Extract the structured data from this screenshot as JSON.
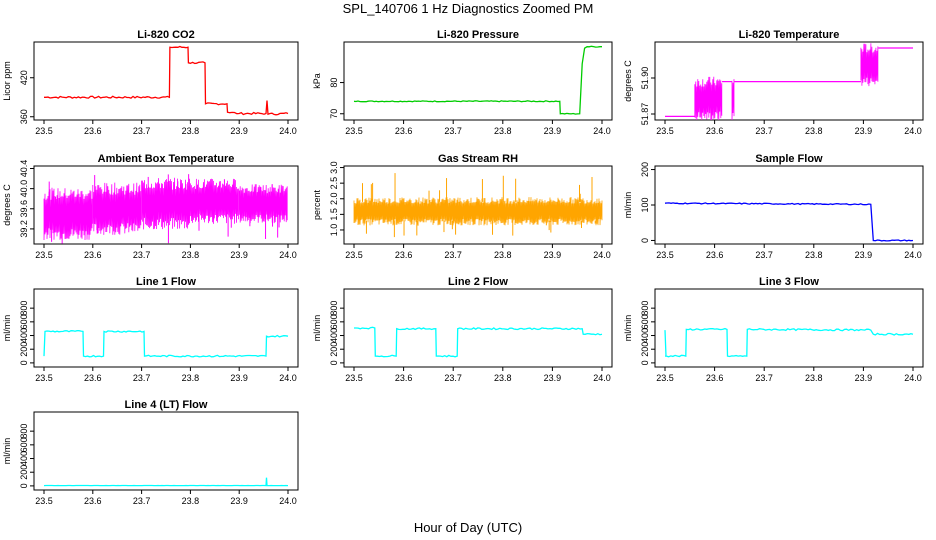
{
  "page": {
    "title": "SPL_140706  1 Hz Diagnostics Zoomed PM",
    "xlabel": "Hour of Day (UTC)"
  },
  "chart_data": [
    {
      "id": "co2",
      "type": "line",
      "title": "Li-820 CO2",
      "ylabel": "Licor ppm",
      "color": "#ff0000",
      "xlim": [
        23.5,
        24.0
      ],
      "ylim": [
        355,
        475
      ],
      "xticks": [
        23.5,
        23.6,
        23.7,
        23.8,
        23.9,
        24.0
      ],
      "xtick_labels": [
        "23.5",
        "23.6",
        "23.7",
        "23.8",
        "23.9",
        "24.0"
      ],
      "yticks": [
        360,
        420
      ],
      "ytick_labels": [
        "360",
        "420"
      ],
      "x": [
        23.5,
        23.757,
        23.758,
        23.795,
        23.796,
        23.83,
        23.831,
        23.875,
        23.876,
        23.9,
        23.955,
        23.957,
        23.959,
        24.0
      ],
      "y": [
        390,
        390,
        467,
        467,
        443,
        443,
        380,
        380,
        367,
        365,
        365,
        385,
        364,
        365
      ],
      "noise": 1.5
    },
    {
      "id": "pressure",
      "type": "line",
      "title": "Li-820 Pressure",
      "ylabel": "kPa",
      "color": "#00cc00",
      "xlim": [
        23.5,
        24.0
      ],
      "ylim": [
        68,
        93
      ],
      "xticks": [
        23.5,
        23.6,
        23.7,
        23.8,
        23.9,
        24.0
      ],
      "xtick_labels": [
        "23.5",
        "23.6",
        "23.7",
        "23.8",
        "23.9",
        "24.0"
      ],
      "yticks": [
        70,
        80
      ],
      "ytick_labels": [
        "70",
        "80"
      ],
      "x": [
        23.5,
        23.915,
        23.916,
        23.955,
        23.96,
        23.965,
        23.97,
        24.0
      ],
      "y": [
        74,
        74,
        70,
        70,
        86,
        91,
        91.5,
        91.5
      ],
      "noise": 0.15
    },
    {
      "id": "temperature",
      "type": "band",
      "title": "Li-820 Temperature",
      "ylabel": "degrees C",
      "color": "#ff00ff",
      "xlim": [
        23.5,
        24.0
      ],
      "ylim": [
        51.865,
        51.93
      ],
      "xticks": [
        23.5,
        23.6,
        23.7,
        23.8,
        23.9,
        24.0
      ],
      "xtick_labels": [
        "23.5",
        "23.6",
        "23.7",
        "23.8",
        "23.9",
        "24.0"
      ],
      "yticks": [
        51.87,
        51.9
      ],
      "ytick_labels": [
        "51.87",
        "51.90"
      ],
      "segments": [
        {
          "x0": 23.5,
          "x1": 23.56,
          "lo": 51.868,
          "hi": 51.868
        },
        {
          "x0": 23.56,
          "x1": 23.615,
          "lo": 51.868,
          "hi": 51.897
        },
        {
          "x0": 23.615,
          "x1": 23.635,
          "lo": 51.897,
          "hi": 51.897
        },
        {
          "x0": 23.635,
          "x1": 23.64,
          "lo": 51.868,
          "hi": 51.897
        },
        {
          "x0": 23.64,
          "x1": 23.895,
          "lo": 51.897,
          "hi": 51.897
        },
        {
          "x0": 23.895,
          "x1": 23.93,
          "lo": 51.897,
          "hi": 51.925
        },
        {
          "x0": 23.93,
          "x1": 24.0,
          "lo": 51.925,
          "hi": 51.925
        }
      ]
    },
    {
      "id": "ambient",
      "type": "band",
      "title": "Ambient Box Temperature",
      "ylabel": "degrees C",
      "color": "#ff00ff",
      "xlim": [
        23.5,
        24.0
      ],
      "ylim": [
        38.9,
        40.45
      ],
      "xticks": [
        23.5,
        23.6,
        23.7,
        23.8,
        23.9,
        24.0
      ],
      "xtick_labels": [
        "23.5",
        "23.6",
        "23.7",
        "23.8",
        "23.9",
        "24.0"
      ],
      "yticks": [
        39.2,
        39.6,
        40.0,
        40.4
      ],
      "ytick_labels": [
        "39.2",
        "39.6",
        "40.0",
        "40.4"
      ],
      "segments": [
        {
          "x0": 23.5,
          "x1": 23.6,
          "lo": 39.1,
          "hi": 39.9
        },
        {
          "x0": 23.6,
          "x1": 23.7,
          "lo": 39.2,
          "hi": 40.0
        },
        {
          "x0": 23.7,
          "x1": 23.8,
          "lo": 39.3,
          "hi": 40.1
        },
        {
          "x0": 23.8,
          "x1": 23.9,
          "lo": 39.4,
          "hi": 40.1
        },
        {
          "x0": 23.9,
          "x1": 24.0,
          "lo": 39.4,
          "hi": 40.0
        }
      ]
    },
    {
      "id": "rh",
      "type": "band",
      "title": "Gas Stream RH",
      "ylabel": "percent",
      "color": "#ffa500",
      "xlim": [
        23.5,
        24.0
      ],
      "ylim": [
        0.55,
        3.05
      ],
      "xticks": [
        23.5,
        23.6,
        23.7,
        23.8,
        23.9,
        24.0
      ],
      "xtick_labels": [
        "23.5",
        "23.6",
        "23.7",
        "23.8",
        "23.9",
        "24.0"
      ],
      "yticks": [
        1.0,
        1.5,
        2.0,
        2.5,
        3.0
      ],
      "ytick_labels": [
        "1.0",
        "1.5",
        "2.0",
        "2.5",
        "3.0"
      ],
      "segments": [
        {
          "x0": 23.5,
          "x1": 24.0,
          "lo": 1.25,
          "hi": 1.95
        }
      ]
    },
    {
      "id": "sample",
      "type": "line",
      "title": "Sample Flow",
      "ylabel": "ml/min",
      "color": "#0000ff",
      "xlim": [
        23.5,
        24.0
      ],
      "ylim": [
        -10,
        210
      ],
      "xticks": [
        23.5,
        23.6,
        23.7,
        23.8,
        23.9,
        24.0
      ],
      "xtick_labels": [
        "23.5",
        "23.6",
        "23.7",
        "23.8",
        "23.9",
        "24.0"
      ],
      "yticks": [
        0,
        100,
        200
      ],
      "ytick_labels": [
        "0",
        "100",
        "200"
      ],
      "x": [
        23.5,
        23.915,
        23.92,
        24.0
      ],
      "y": [
        105,
        102,
        0,
        0
      ],
      "noise": 1.5
    },
    {
      "id": "line1",
      "type": "line",
      "title": "Line 1 Flow",
      "ylabel": "ml/min",
      "color": "#00ffff",
      "xlim": [
        23.5,
        24.0
      ],
      "ylim": [
        -60,
        1080
      ],
      "xticks": [
        23.5,
        23.6,
        23.7,
        23.8,
        23.9,
        24.0
      ],
      "xtick_labels": [
        "23.5",
        "23.6",
        "23.7",
        "23.8",
        "23.9",
        "24.0"
      ],
      "yticks": [
        0,
        200,
        400,
        600,
        800
      ],
      "ytick_labels": [
        "0",
        "200",
        "400",
        "600",
        "800"
      ],
      "x": [
        23.5,
        23.502,
        23.58,
        23.581,
        23.622,
        23.623,
        23.705,
        23.706,
        23.955,
        23.956,
        24.0
      ],
      "y": [
        100,
        460,
        460,
        100,
        100,
        460,
        460,
        100,
        100,
        390,
        390
      ],
      "noise": 12
    },
    {
      "id": "line2",
      "type": "line",
      "title": "Line 2 Flow",
      "ylabel": "ml/min",
      "color": "#00ffff",
      "xlim": [
        23.5,
        24.0
      ],
      "ylim": [
        -60,
        1080
      ],
      "xticks": [
        23.5,
        23.6,
        23.7,
        23.8,
        23.9,
        24.0
      ],
      "xtick_labels": [
        "23.5",
        "23.6",
        "23.7",
        "23.8",
        "23.9",
        "24.0"
      ],
      "yticks": [
        0,
        200,
        400,
        600,
        800
      ],
      "ytick_labels": [
        "0",
        "200",
        "400",
        "600",
        "800"
      ],
      "x": [
        23.5,
        23.542,
        23.543,
        23.585,
        23.586,
        23.665,
        23.666,
        23.708,
        23.709,
        23.96,
        23.962,
        24.0
      ],
      "y": [
        510,
        510,
        100,
        100,
        500,
        500,
        100,
        100,
        500,
        500,
        420,
        420
      ],
      "noise": 12
    },
    {
      "id": "line3",
      "type": "line",
      "title": "Line 3 Flow",
      "ylabel": "ml/min",
      "color": "#00ffff",
      "xlim": [
        23.5,
        24.0
      ],
      "ylim": [
        -60,
        1080
      ],
      "xticks": [
        23.5,
        23.6,
        23.7,
        23.8,
        23.9,
        24.0
      ],
      "xtick_labels": [
        "23.5",
        "23.6",
        "23.7",
        "23.8",
        "23.9",
        "24.0"
      ],
      "yticks": [
        0,
        200,
        400,
        600,
        800
      ],
      "ytick_labels": [
        "0",
        "200",
        "400",
        "600",
        "800"
      ],
      "x": [
        23.5,
        23.502,
        23.5,
        23.503,
        23.542,
        23.543,
        23.625,
        23.626,
        23.665,
        23.666,
        23.915,
        23.92,
        24.0
      ],
      "y": [
        480,
        100,
        100,
        100,
        100,
        490,
        490,
        100,
        100,
        490,
        480,
        420,
        420
      ],
      "noise": 12
    },
    {
      "id": "line4",
      "type": "line",
      "title": "Line 4 (LT) Flow",
      "ylabel": "ml/min",
      "color": "#00ffff",
      "xlim": [
        23.5,
        24.0
      ],
      "ylim": [
        -60,
        1080
      ],
      "xticks": [
        23.5,
        23.6,
        23.7,
        23.8,
        23.9,
        24.0
      ],
      "xtick_labels": [
        "23.5",
        "23.6",
        "23.7",
        "23.8",
        "23.9",
        "24.0"
      ],
      "yticks": [
        0,
        200,
        400,
        600,
        800
      ],
      "ytick_labels": [
        "0",
        "200",
        "400",
        "600",
        "800"
      ],
      "x": [
        23.5,
        23.955,
        23.956,
        23.957,
        24.0
      ],
      "y": [
        5,
        5,
        120,
        5,
        5
      ],
      "noise": 1
    }
  ]
}
